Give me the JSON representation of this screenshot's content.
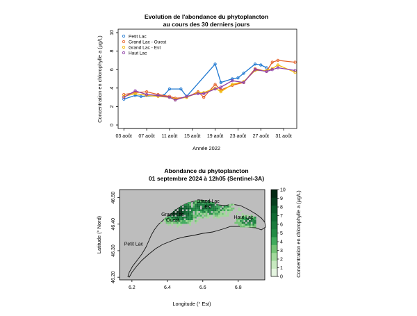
{
  "chart_data": [
    {
      "type": "line",
      "title": "Evolution de l'abondance du phytoplancton",
      "subtitle": "au cours des 30 derniers jours",
      "xlabel": "Année 2022",
      "ylabel": "Concentration en chlorophylle a (µg/L)",
      "ylim": [
        0,
        10
      ],
      "y_ticks": [
        0,
        2,
        4,
        6,
        8,
        10
      ],
      "x_range": [
        "2022-08-03",
        "2022-08-31"
      ],
      "x_ticks": [
        "2022-08-03",
        "2022-08-07",
        "2022-08-11",
        "2022-08-15",
        "2022-08-19",
        "2022-08-23",
        "2022-08-27",
        "2022-08-31"
      ],
      "x_tick_labels": [
        "03 août",
        "07 août",
        "11 août",
        "15 août",
        "19 août",
        "23 août",
        "27 août",
        "31 août"
      ],
      "grid": false,
      "legend": "top-left",
      "series": [
        {
          "name": "Petit Lac",
          "color": "#1f78d1",
          "x": [
            "2022-08-03",
            "2022-08-05",
            "2022-08-06",
            "2022-08-10",
            "2022-08-11",
            "2022-08-13",
            "2022-08-14",
            "2022-08-19",
            "2022-08-20",
            "2022-08-22",
            "2022-08-23",
            "2022-08-24",
            "2022-08-26",
            "2022-08-27",
            "2022-08-28"
          ],
          "y": [
            2.8,
            3.2,
            3.1,
            3.2,
            3.9,
            3.9,
            3.1,
            6.6,
            4.6,
            5.0,
            5.1,
            5.6,
            6.6,
            6.5,
            6.2
          ]
        },
        {
          "name": "Grand Lac - Ouest",
          "color": "#e5622a",
          "x": [
            "2022-08-03",
            "2022-08-05",
            "2022-08-07",
            "2022-08-09",
            "2022-08-11",
            "2022-08-12",
            "2022-08-14",
            "2022-08-16",
            "2022-08-17",
            "2022-08-19",
            "2022-08-20",
            "2022-08-22",
            "2022-08-24",
            "2022-08-26",
            "2022-08-28",
            "2022-08-29",
            "2022-08-30",
            "2022-09-02"
          ],
          "y": [
            3.3,
            3.5,
            3.6,
            3.3,
            3.1,
            2.9,
            3.0,
            3.6,
            3.0,
            4.4,
            3.8,
            4.3,
            4.6,
            6.1,
            5.8,
            6.8,
            7.0,
            6.8
          ]
        },
        {
          "name": "Grand Lac - Est",
          "color": "#f2b705",
          "x": [
            "2022-08-03",
            "2022-08-05",
            "2022-08-07",
            "2022-08-09",
            "2022-08-11",
            "2022-08-12",
            "2022-08-14",
            "2022-08-16",
            "2022-08-17",
            "2022-08-19",
            "2022-08-20",
            "2022-08-22",
            "2022-08-24",
            "2022-08-26",
            "2022-08-28",
            "2022-08-29",
            "2022-08-30",
            "2022-09-02"
          ],
          "y": [
            3.1,
            3.4,
            3.2,
            3.1,
            3.0,
            2.8,
            3.0,
            3.5,
            3.5,
            4.0,
            3.6,
            4.4,
            4.7,
            5.9,
            5.9,
            6.1,
            6.5,
            5.7
          ]
        },
        {
          "name": "Haut Lac",
          "color": "#8e3ea8",
          "x": [
            "2022-08-03",
            "2022-08-05",
            "2022-08-07",
            "2022-08-09",
            "2022-08-11",
            "2022-08-12",
            "2022-08-14",
            "2022-08-16",
            "2022-08-17",
            "2022-08-19",
            "2022-08-20",
            "2022-08-22",
            "2022-08-24",
            "2022-08-26",
            "2022-08-28",
            "2022-08-29",
            "2022-08-30",
            "2022-09-02"
          ],
          "y": [
            3.0,
            3.7,
            3.3,
            3.2,
            3.0,
            2.7,
            3.1,
            3.4,
            3.4,
            3.9,
            4.1,
            4.8,
            4.6,
            6.0,
            5.8,
            6.0,
            6.2,
            5.9
          ]
        }
      ]
    },
    {
      "type": "heatmap",
      "title": "Abondance du phytoplancton",
      "subtitle": "01 septembre 2024 à 12h05 (Sentinel-3A)",
      "xlabel": "Longitude (° Est)",
      "ylabel": "Latitude (° Nord)",
      "xlim": [
        6.13,
        6.95
      ],
      "ylim": [
        46.19,
        46.53
      ],
      "x_ticks": [
        6.2,
        6.4,
        6.6,
        6.8
      ],
      "x_tick_labels": [
        "6.2",
        "6.4",
        "6.6",
        "6.8"
      ],
      "y_ticks": [
        46.2,
        46.3,
        46.4,
        46.5
      ],
      "y_tick_labels": [
        "46.20",
        "46.30",
        "46.40",
        "46.50"
      ],
      "colorbar": {
        "label": "Concentration en chlorophylle a (µg/L)",
        "range": [
          0,
          10
        ],
        "ticks": [
          0,
          1,
          2,
          3,
          4,
          5,
          6,
          7,
          8,
          9,
          10
        ],
        "colors": [
          "#e5f5e0",
          "#c7e9c0",
          "#a1d99b",
          "#74c476",
          "#41ab5d",
          "#238b45",
          "#1b7a3d",
          "#116a33",
          "#0a5a2a",
          "#063f1e",
          "#042a14"
        ]
      },
      "lake_labels": [
        {
          "text": "Grand Lac\nEst",
          "lon": 6.63,
          "lat": 46.48
        },
        {
          "text": "Grand Lac\nOuest",
          "lon": 6.43,
          "lat": 46.43
        },
        {
          "text": "Haut Lac",
          "lon": 6.83,
          "lat": 46.42
        },
        {
          "text": "Petit Lac",
          "lon": 6.21,
          "lat": 46.32
        }
      ],
      "high_concentration_region": {
        "lon": [
          6.33,
          6.9
        ],
        "lat": [
          46.36,
          46.51
        ]
      }
    }
  ]
}
